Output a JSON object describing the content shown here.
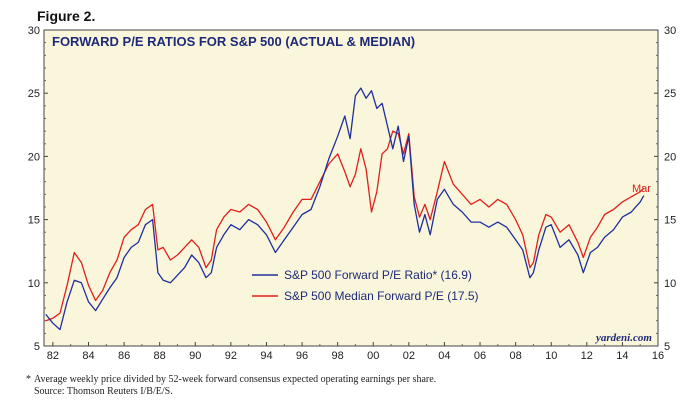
{
  "figure_label": "Figure 2.",
  "footnote": {
    "asterisk": "*",
    "line1": "Average weekly price divided by 52-week forward consensus expected operating earnings per share.",
    "line2": "Source: Thomson Reuters I/B/E/S."
  },
  "colors": {
    "background": "#faf6dc",
    "actual": "#1f2f9c",
    "median": "#e0201b",
    "title": "#1e2a78"
  },
  "chart_data": {
    "type": "line",
    "title": "FORWARD P/E RATIOS FOR S&P 500 (ACTUAL & MEDIAN)",
    "credit": "yardeni.com",
    "xlim": [
      1981.5,
      2016
    ],
    "ylim": [
      5,
      30
    ],
    "x_ticks": [
      1982,
      1984,
      1986,
      1988,
      1990,
      1992,
      1994,
      1996,
      1998,
      2000,
      2002,
      2004,
      2006,
      2008,
      2010,
      2012,
      2014,
      2016
    ],
    "x_tick_labels": [
      "82",
      "84",
      "86",
      "88",
      "90",
      "92",
      "94",
      "96",
      "98",
      "00",
      "02",
      "04",
      "06",
      "08",
      "10",
      "12",
      "14",
      "16"
    ],
    "y_ticks": [
      5,
      10,
      15,
      20,
      25,
      30
    ],
    "y_tick_labels": [
      "5",
      "10",
      "15",
      "20",
      "25",
      "30"
    ],
    "end_label": "Mar",
    "series": [
      {
        "name": "S&P 500 Forward P/E Ratio* (16.9)",
        "color": "#1f2f9c",
        "x": [
          1981.6,
          1982.0,
          1982.4,
          1982.8,
          1983.2,
          1983.6,
          1984.0,
          1984.4,
          1984.8,
          1985.2,
          1985.6,
          1986.0,
          1986.4,
          1986.8,
          1987.2,
          1987.6,
          1987.9,
          1988.2,
          1988.6,
          1989.0,
          1989.4,
          1989.8,
          1990.2,
          1990.6,
          1990.9,
          1991.2,
          1991.6,
          1992.0,
          1992.5,
          1993.0,
          1993.5,
          1994.0,
          1994.5,
          1995.0,
          1995.5,
          1996.0,
          1996.5,
          1997.0,
          1997.5,
          1998.0,
          1998.4,
          1998.7,
          1999.0,
          1999.3,
          1999.6,
          1999.9,
          2000.2,
          2000.5,
          2000.8,
          2001.1,
          2001.4,
          2001.7,
          2002.0,
          2002.3,
          2002.6,
          2002.9,
          2003.2,
          2003.6,
          2004.0,
          2004.5,
          2005.0,
          2005.5,
          2006.0,
          2006.5,
          2007.0,
          2007.5,
          2008.0,
          2008.4,
          2008.8,
          2009.0,
          2009.3,
          2009.7,
          2010.0,
          2010.5,
          2011.0,
          2011.5,
          2011.8,
          2012.2,
          2012.6,
          2013.0,
          2013.5,
          2014.0,
          2014.5,
          2015.0,
          2015.2
        ],
        "values": [
          7.5,
          6.8,
          6.3,
          8.5,
          10.2,
          10.0,
          8.5,
          7.8,
          8.7,
          9.6,
          10.4,
          12.0,
          12.8,
          13.2,
          14.6,
          15.0,
          10.8,
          10.2,
          10.0,
          10.6,
          11.2,
          12.2,
          11.6,
          10.4,
          10.8,
          12.8,
          13.8,
          14.6,
          14.2,
          15.0,
          14.6,
          13.8,
          12.4,
          13.4,
          14.4,
          15.4,
          15.8,
          17.6,
          19.8,
          21.6,
          23.2,
          21.4,
          24.8,
          25.4,
          24.6,
          25.2,
          23.8,
          24.2,
          22.4,
          20.6,
          22.4,
          19.6,
          21.6,
          16.2,
          14.0,
          15.4,
          13.8,
          16.6,
          17.4,
          16.2,
          15.6,
          14.8,
          14.8,
          14.4,
          14.8,
          14.4,
          13.4,
          12.6,
          10.4,
          10.8,
          12.6,
          14.4,
          14.6,
          12.8,
          13.4,
          12.2,
          10.8,
          12.4,
          12.8,
          13.6,
          14.2,
          15.2,
          15.6,
          16.4,
          16.9
        ]
      },
      {
        "name": "S&P 500 Median Forward P/E (17.5)",
        "color": "#e0201b",
        "x": [
          1981.6,
          1982.0,
          1982.4,
          1982.8,
          1983.2,
          1983.6,
          1984.0,
          1984.4,
          1984.8,
          1985.2,
          1985.6,
          1986.0,
          1986.4,
          1986.8,
          1987.2,
          1987.6,
          1987.9,
          1988.2,
          1988.6,
          1989.0,
          1989.4,
          1989.8,
          1990.2,
          1990.6,
          1990.9,
          1991.2,
          1991.6,
          1992.0,
          1992.5,
          1993.0,
          1993.5,
          1994.0,
          1994.5,
          1995.0,
          1995.5,
          1996.0,
          1996.5,
          1997.0,
          1997.5,
          1998.0,
          1998.4,
          1998.7,
          1999.0,
          1999.3,
          1999.6,
          1999.9,
          2000.2,
          2000.5,
          2000.8,
          2001.1,
          2001.4,
          2001.7,
          2002.0,
          2002.3,
          2002.6,
          2002.9,
          2003.2,
          2003.6,
          2004.0,
          2004.5,
          2005.0,
          2005.5,
          2006.0,
          2006.5,
          2007.0,
          2007.5,
          2008.0,
          2008.4,
          2008.8,
          2009.0,
          2009.3,
          2009.7,
          2010.0,
          2010.5,
          2011.0,
          2011.5,
          2011.8,
          2012.2,
          2012.6,
          2013.0,
          2013.5,
          2014.0,
          2014.5,
          2015.0,
          2015.2
        ],
        "values": [
          7.0,
          7.2,
          7.6,
          9.8,
          12.4,
          11.6,
          9.8,
          8.6,
          9.4,
          10.8,
          11.8,
          13.6,
          14.2,
          14.6,
          15.8,
          16.2,
          12.6,
          12.8,
          11.8,
          12.2,
          12.8,
          13.4,
          12.8,
          11.2,
          11.8,
          14.2,
          15.2,
          15.8,
          15.6,
          16.2,
          15.8,
          14.8,
          13.4,
          14.4,
          15.6,
          16.6,
          16.6,
          18.0,
          19.4,
          20.2,
          18.8,
          17.6,
          18.6,
          20.6,
          19.0,
          15.6,
          17.2,
          20.2,
          20.6,
          22.0,
          21.8,
          20.2,
          21.8,
          16.8,
          15.2,
          16.2,
          15.0,
          17.2,
          19.6,
          17.8,
          17.0,
          16.2,
          16.6,
          16.0,
          16.6,
          16.2,
          15.0,
          13.8,
          11.2,
          11.6,
          13.8,
          15.4,
          15.2,
          14.0,
          14.6,
          13.2,
          12.0,
          13.6,
          14.4,
          15.4,
          15.8,
          16.4,
          16.8,
          17.2,
          17.5
        ]
      }
    ]
  }
}
